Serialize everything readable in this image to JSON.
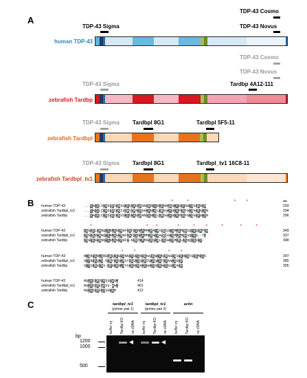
{
  "panelA": {
    "letter": "A",
    "human": {
      "name": "human TDP-43",
      "name_color": "#2a86b8",
      "antibodies": [
        {
          "label": "TDP-43 Sigma",
          "gray": false
        },
        {
          "label": "TDP-43 Cosmo",
          "gray": false
        },
        {
          "label": "TDP-43 Novus",
          "gray": false
        }
      ],
      "colors": [
        "#5bb3df",
        "#1f3b66",
        "#2d6aa8",
        "#d4e9f5",
        "#6ab9e3",
        "#d4e9f5",
        "#6ab9e3",
        "#a9c04a",
        "#6b8e23",
        "#d4e9f5",
        "#e8f3fa",
        "#2d6aa8"
      ]
    },
    "zebra_tardbp": {
      "name": "zebrafish Tardbp",
      "name_color": "#d71920",
      "antibodies": [
        {
          "label": "TDP-43 Cosmo",
          "gray": true
        },
        {
          "label": "TDP-43 Novus",
          "gray": true
        },
        {
          "label": "TDP-43 Sigma",
          "gray": true
        },
        {
          "label": "Tardbp 4A12-111",
          "gray": false
        }
      ],
      "colors": [
        "#d71920",
        "#1f3b66",
        "#2d6aa8",
        "#f6b8c3",
        "#d71920",
        "#f6b8c3",
        "#d71920",
        "#a9c04a",
        "#6b8e23",
        "#f3a4b0",
        "#f08a95",
        "#b71c1c"
      ]
    },
    "zebra_tardbpl": {
      "name": "zebrafish Tardbpl",
      "name_color": "#e06a1a",
      "antibodies": [
        {
          "label": "TDP-43 Sigma",
          "gray": true
        },
        {
          "label": "Tardbpl 8G1",
          "gray": false
        },
        {
          "label": "Tardbpl 5F5-11",
          "gray": false
        }
      ],
      "colors": [
        "#e8731d",
        "#1f3b66",
        "#2d6aa8",
        "#fbd8b8",
        "#e8731d",
        "#fbd8b8",
        "#e8731d",
        "#a9c04a",
        "#6b8e23",
        "#fbd8b8"
      ]
    },
    "zebra_tardbpl_tv1": {
      "name": "zebrafish Tardbpl_tv1",
      "name_color": "#c0481a",
      "antibodies": [
        {
          "label": "TDP-43 Sigma",
          "gray": true
        },
        {
          "label": "Tardbpl 8G1",
          "gray": false
        },
        {
          "label": "Tardbpl_tv1 16C8-11",
          "gray": false
        }
      ],
      "colors": [
        "#e8731d",
        "#1f3b66",
        "#2d6aa8",
        "#fbd8b8",
        "#e8731d",
        "#fbd8b8",
        "#e8731d",
        "#a9c04a",
        "#6b8e23",
        "#fbd8b8",
        "#fce6d3",
        "#e8731d"
      ]
    }
  },
  "panelB": {
    "letter": "B",
    "aa_label": "aa",
    "blocks": [
      {
        "rows": [
          {
            "name": "human TDP-43",
            "seq": "...FAQSLCGEDLIIKGVSHISNAEPKHNSNRQLERSGRFGGNPGGFGNQGGFGNSR",
            "num": "293"
          },
          {
            "name": "zebrafish Tardbpl_tv1",
            "seq": "...FAQSLCGEDLIIKGISVHISNAEPKHNSNRQLERSGRFGGNPGGFGNQGGFGNSR",
            "num": "294"
          },
          {
            "name": "zebrafish Tardbp",
            "seq": "...VAQALCGEDLIIKGVSHISNAEPKHNSSNRQLDRSGRFGGNPGGFGNQGGFGNSR",
            "num": "296"
          }
        ]
      },
      {
        "rows": [
          {
            "name": "human TDP-43",
            "seq": "GGGAGLGNNQGSNMGGGMNFGAFSINPAMMAAAQAALQSSWGMMGMLASQQNQSGPSG",
            "num": "349"
          },
          {
            "name": "zebrafish Tardbpl_tv1",
            "seq": "GNGGGNGNNQGSNMGGGMNFGAFSINPAMMAAAQAALQSSWGMMGMLASQQNQ--TP",
            "num": "337"
          },
          {
            "name": "zebrafish Tardbp",
            "seq": "SNGQGGGNNQGSNMGGGMNFG-NLNPAMMAAAQAALQSSWGMMGMLASQQSQSGT-",
            "num": "348"
          }
        ]
      },
      {
        "rows": [
          {
            "name": "human TDP-43",
            "seq": "NNQNQGNMQREPNQAFGSGNNSYSGSNSGAAIGWGSASNAGSGSGFNGGFGSSMDSK",
            "num": "397"
          },
          {
            "name": "zebrafish Tardbpl_tv1",
            "seq": "SGTNKAQNS-SQNYGSGNMSYSGSNSGAAIGWGSAGTNSAAASGGF",
            "num": "385"
          },
          {
            "name": "zebrafish Tardbp",
            "seq": "SGTSKNAQNS-SPGNNNMSYSGSNSGAAIGWGSASNAGSGSAAAGF",
            "num": "395"
          }
        ]
      },
      {
        "rows": [
          {
            "name": "human TDP-43",
            "seq": "NGFGSSMDSKSSGWGM",
            "num": "414"
          },
          {
            "name": "zebrafish Tardbpl_tv1",
            "seq": "NGFGSSMETKSS-WGM",
            "num": "401"
          },
          {
            "name": "zebrafish Tardbp",
            "seq": "NGFGSSMEKSSGWGM",
            "num": "412"
          }
        ]
      }
    ]
  },
  "panelC": {
    "letter": "C",
    "bp_label": "bp",
    "groups": [
      {
        "title": "tardbpl_tv1",
        "subtitle": "(primer pair 1)"
      },
      {
        "title": "tardbpl_tv1",
        "subtitle": "(primer pair 2)"
      },
      {
        "title": "actin",
        "subtitle": ""
      }
    ],
    "lanes": [
      "buffer inj",
      "Tardbp KO",
      "no cDNA",
      "buffer inj",
      "Tardbp KO",
      "no cDNA",
      "buffer inj",
      "Tardbp KO",
      "no cDNA"
    ],
    "markers": [
      {
        "label": "1200",
        "bp": 1200
      },
      {
        "label": "1000",
        "bp": 1000
      },
      {
        "label": "500",
        "bp": 500
      }
    ],
    "bands": [
      {
        "lane": 1,
        "bp": 1180,
        "intensity": 0.6
      },
      {
        "lane": 3,
        "bp": 1180,
        "intensity": 0.5
      },
      {
        "lane": 4,
        "bp": 1180,
        "intensity": 0.85
      },
      {
        "lane": 6,
        "bp": 620,
        "intensity": 0.9
      },
      {
        "lane": 7,
        "bp": 620,
        "intensity": 0.95
      }
    ]
  }
}
